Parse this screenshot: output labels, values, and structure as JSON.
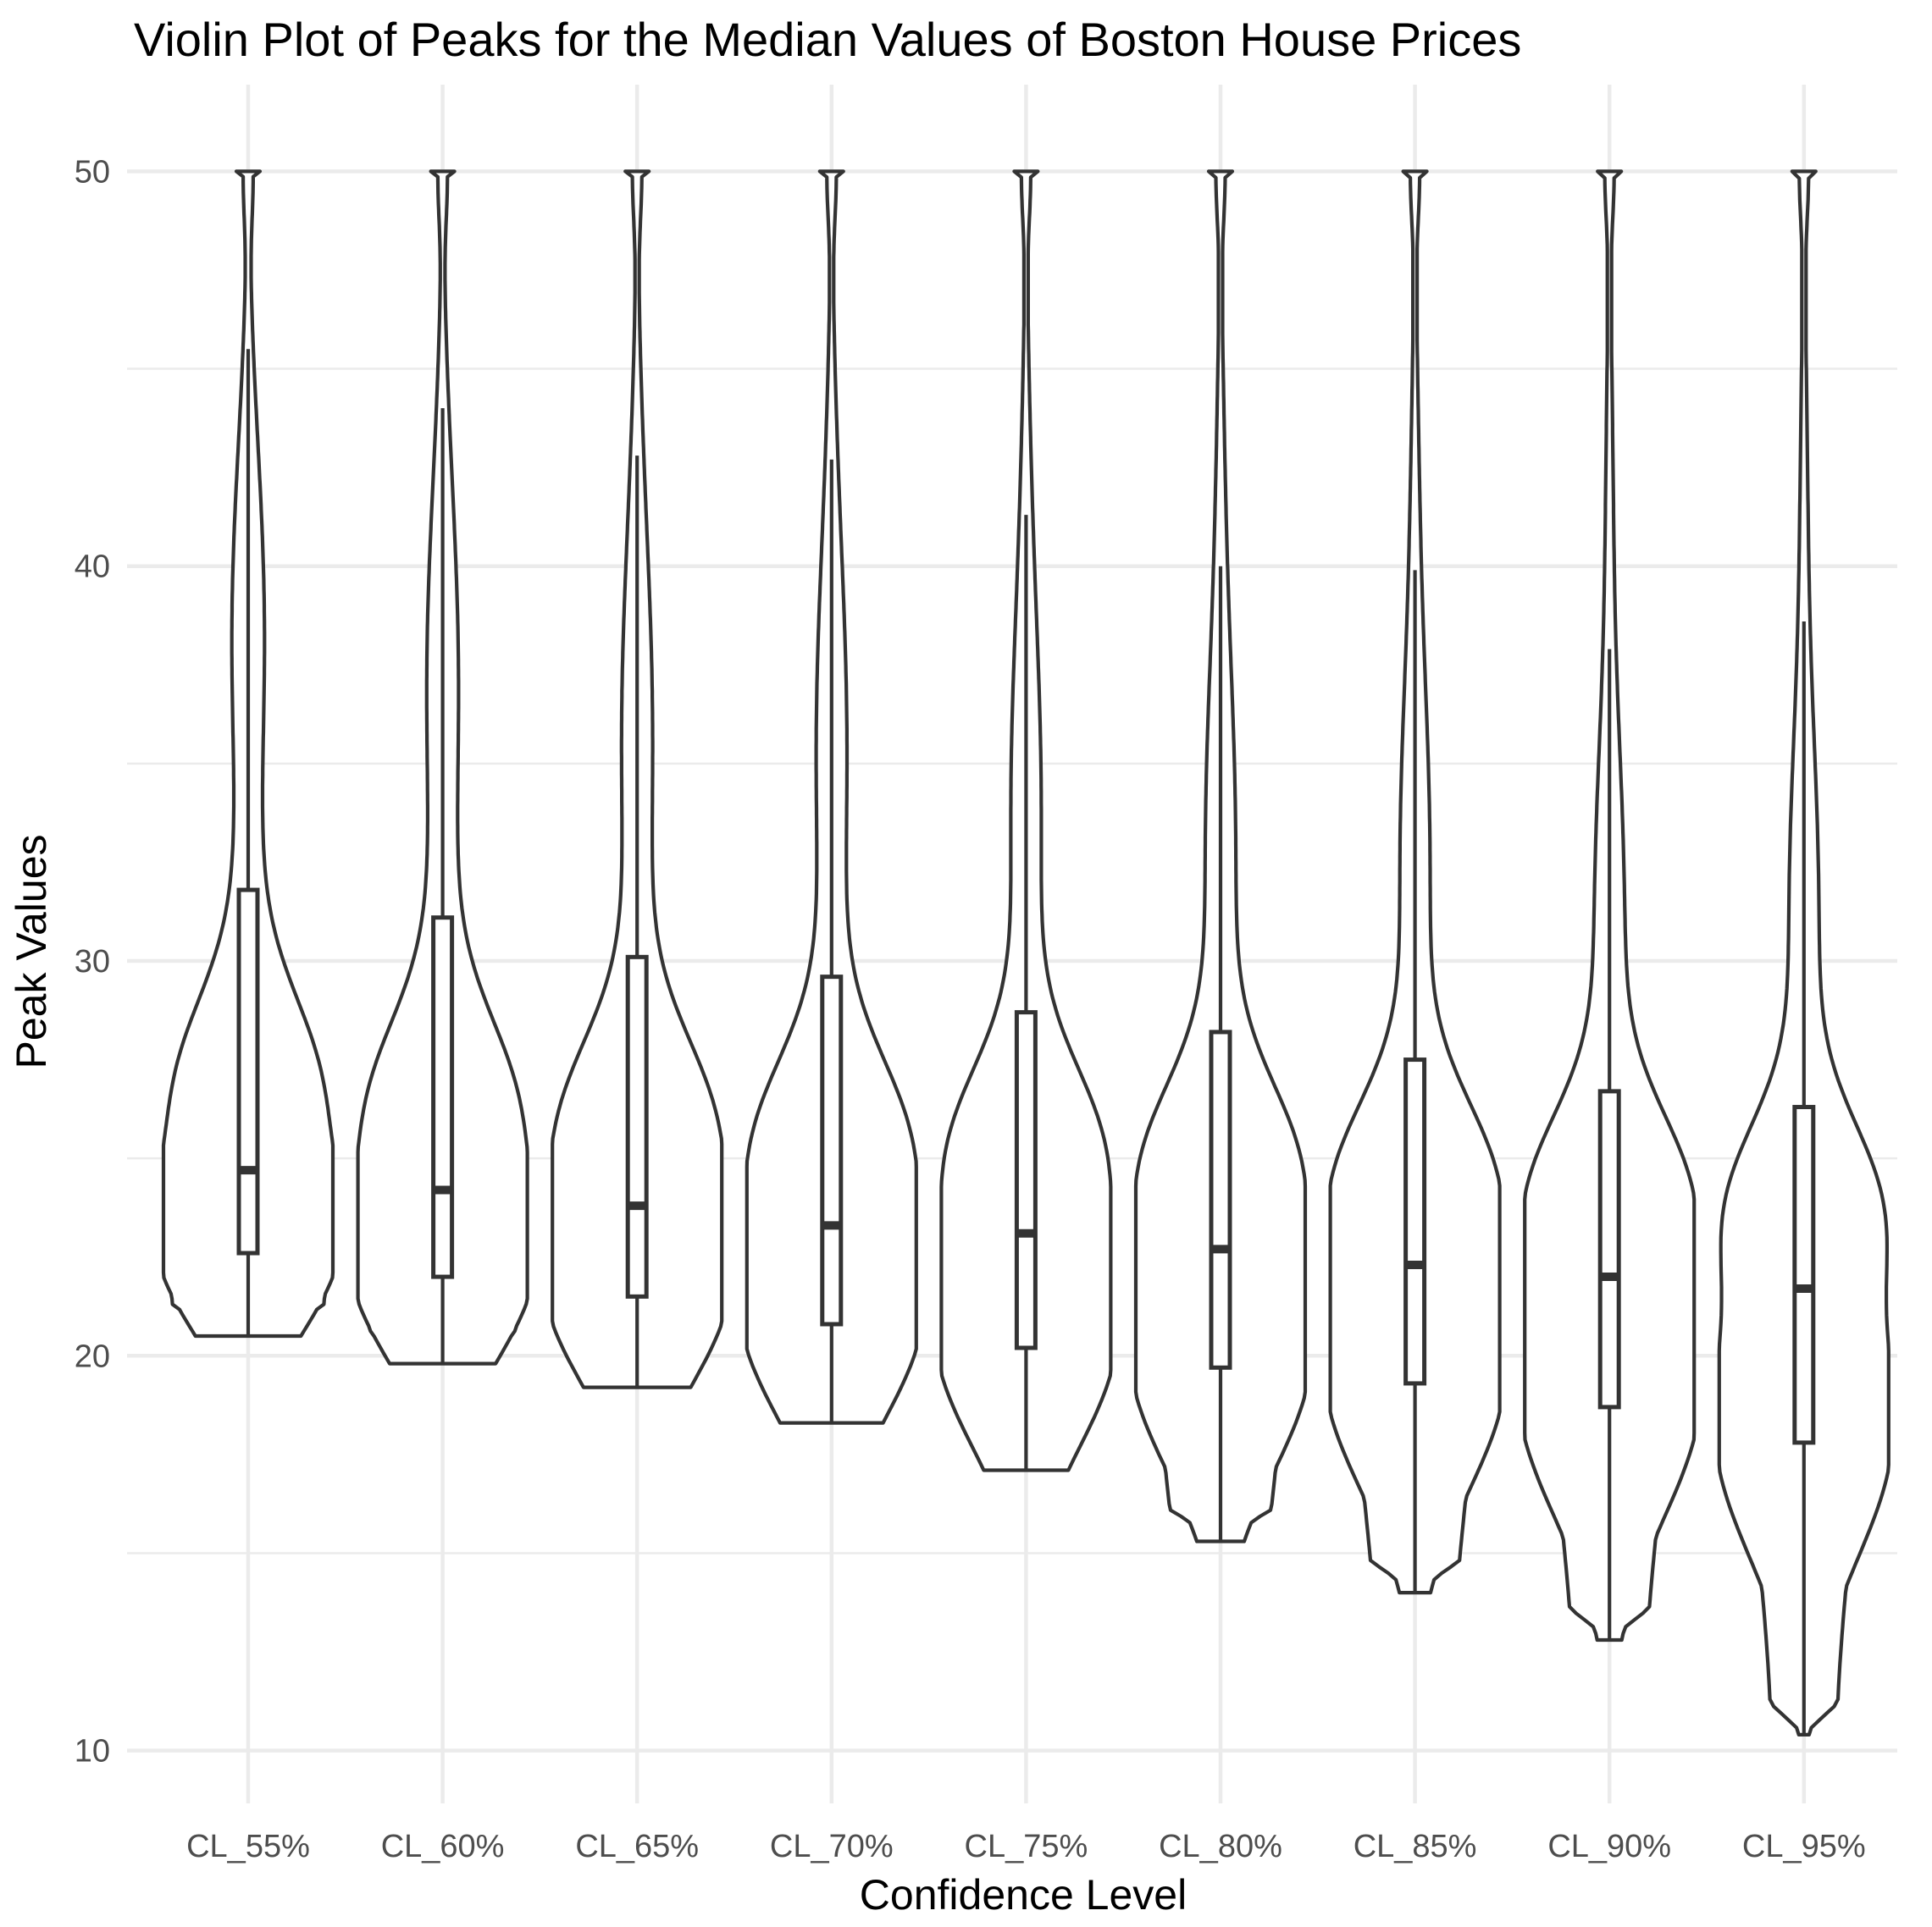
{
  "chart_data": {
    "type": "violin",
    "title": "Violin Plot of Peaks for the Median Values of Boston House Prices",
    "xlabel": "Confidence Level",
    "ylabel": "Peak Values",
    "ylim": [
      8.7,
      52
    ],
    "yticks": [
      10,
      20,
      30,
      40,
      50
    ],
    "grid": true,
    "categories": [
      "CL_55%",
      "CL_60%",
      "CL_65%",
      "CL_70%",
      "CL_75%",
      "CL_80%",
      "CL_85%",
      "CL_90%",
      "CL_95%"
    ],
    "stats": [
      {
        "min": 20.5,
        "q1": 22.6,
        "median": 24.7,
        "q3": 31.8,
        "whisker_high": 45.5,
        "max": 50
      },
      {
        "min": 19.8,
        "q1": 22.0,
        "median": 24.2,
        "q3": 31.1,
        "whisker_high": 44.0,
        "max": 50
      },
      {
        "min": 19.2,
        "q1": 21.5,
        "median": 23.8,
        "q3": 30.1,
        "whisker_high": 42.8,
        "max": 50
      },
      {
        "min": 18.3,
        "q1": 20.8,
        "median": 23.3,
        "q3": 29.6,
        "whisker_high": 42.7,
        "max": 50
      },
      {
        "min": 17.1,
        "q1": 20.2,
        "median": 23.1,
        "q3": 28.7,
        "whisker_high": 41.3,
        "max": 50
      },
      {
        "min": 15.3,
        "q1": 19.7,
        "median": 22.7,
        "q3": 28.2,
        "whisker_high": 40.0,
        "max": 50
      },
      {
        "min": 14.0,
        "q1": 19.3,
        "median": 22.3,
        "q3": 27.5,
        "whisker_high": 39.9,
        "max": 50
      },
      {
        "min": 12.8,
        "q1": 18.7,
        "median": 22.0,
        "q3": 26.7,
        "whisker_high": 37.9,
        "max": 50
      },
      {
        "min": 10.4,
        "q1": 17.8,
        "median": 21.7,
        "q3": 26.3,
        "whisker_high": 38.6,
        "max": 50
      }
    ]
  }
}
